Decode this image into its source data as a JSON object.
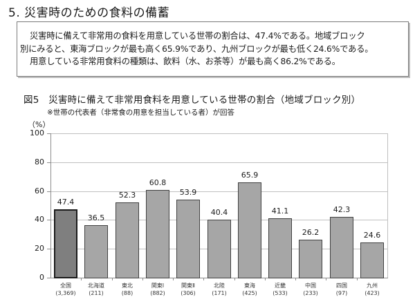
{
  "section": {
    "title": "5. 災害時のための食料の備蓄"
  },
  "summary": {
    "lines": [
      "災害時に備えて非常用の食料を用意している世帯の割合は、47.4%である。地域ブロック",
      "別にみると、東海ブロックが最も高く65.9%であり、九州ブロックが最も低く24.6%である。",
      "用意している非常用食料の種類は、飲料（水、お茶等）が最も高く86.2%である。"
    ]
  },
  "figure": {
    "title": "図5　災害時に備えて非常用食料を用意している世帯の割合（地域ブロック別）",
    "note": "※世帯の代表者（非常食の用意を担当している者）が回答",
    "unit": "（%）"
  },
  "chart_data": {
    "type": "bar",
    "title": "災害時に備えて非常用食料を用意している世帯の割合（地域ブロック別）",
    "xlabel": "",
    "ylabel": "（%）",
    "ylim": [
      0,
      100
    ],
    "yticks": [
      0,
      20,
      40,
      60,
      80,
      100
    ],
    "grid": true,
    "legend": null,
    "categories": [
      "全国",
      "北海道",
      "東北",
      "関東Ⅰ",
      "関東Ⅱ",
      "北陸",
      "東海",
      "近畿",
      "中国",
      "四国",
      "九州"
    ],
    "sample_sizes": [
      "(3,369)",
      "(211)",
      "(88)",
      "(882)",
      "(306)",
      "(171)",
      "(425)",
      "(533)",
      "(233)",
      "(97)",
      "(423)"
    ],
    "values": [
      47.4,
      36.5,
      52.3,
      60.8,
      53.9,
      40.4,
      65.9,
      41.1,
      26.2,
      42.3,
      24.6
    ],
    "value_labels": [
      "47.4",
      "36.5",
      "52.3",
      "60.8",
      "53.9",
      "40.4",
      "65.9",
      "41.1",
      "26.2",
      "42.3",
      "24.6"
    ],
    "highlight_index": 0,
    "colors": {
      "bar": "#a6a6a6",
      "bar_highlight": "#7f7f7f",
      "bar_border": "#404040",
      "grid": "#bfbfbf"
    }
  }
}
